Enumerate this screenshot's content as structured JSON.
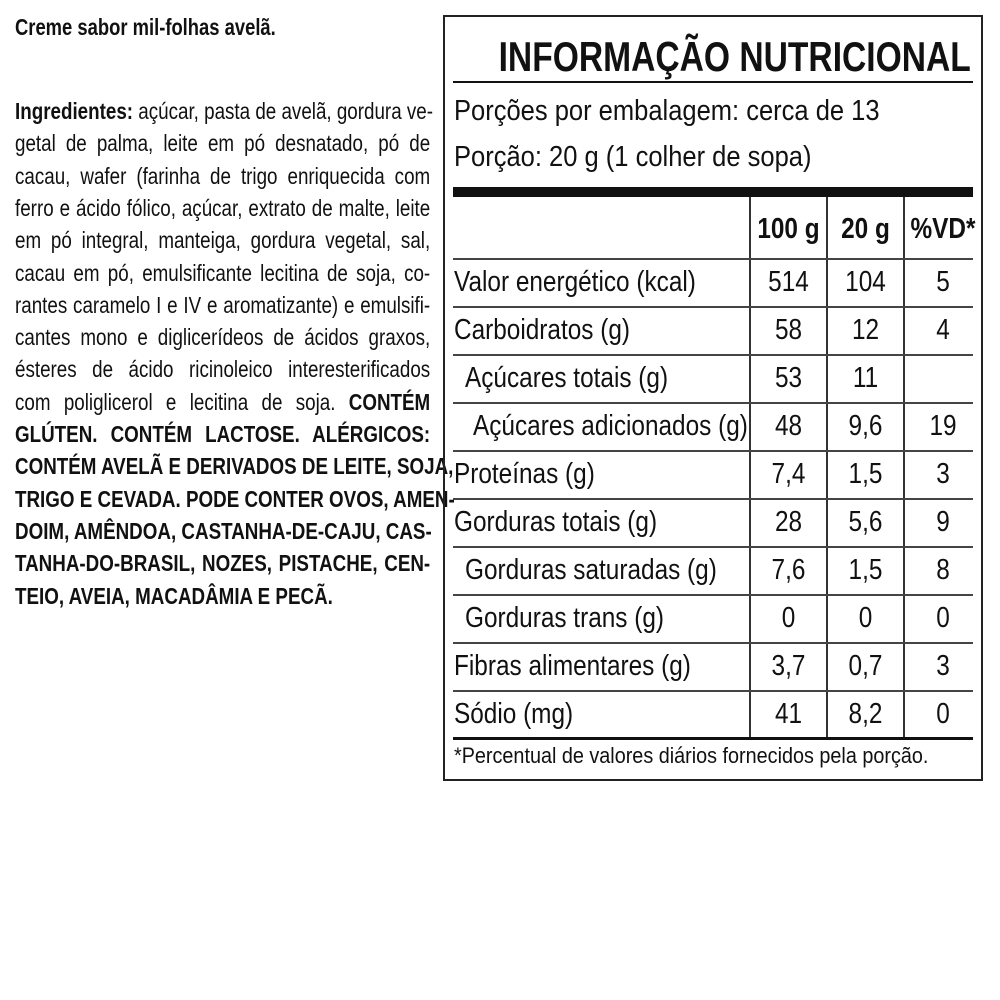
{
  "product_name": "Creme sabor mil-folhas avelã.",
  "ingredients_lines": [
    [
      {
        "b": true,
        "t": "Ingredientes: "
      },
      {
        "t": "açúcar, pasta de avelã, gordura ve-"
      }
    ],
    [
      {
        "t": "getal de palma, leite em pó desnatado, pó de"
      }
    ],
    [
      {
        "t": "cacau, wafer (farinha de trigo enriquecida com"
      }
    ],
    [
      {
        "t": "ferro e ácido fólico, açúcar, extrato de malte, leite"
      }
    ],
    [
      {
        "t": "em pó integral, manteiga, gordura vegetal, sal,"
      }
    ],
    [
      {
        "t": "cacau em pó, emulsificante lecitina de soja, co-"
      }
    ],
    [
      {
        "t": "rantes caramelo I e IV e aromatizante) e emulsifi-"
      }
    ],
    [
      {
        "t": "cantes mono e diglicerídeos de ácidos graxos,"
      }
    ],
    [
      {
        "t": "ésteres de ácido ricinoleico interesterificados"
      }
    ],
    [
      {
        "t": "com poliglicerol e lecitina de soja. "
      },
      {
        "b": true,
        "t": "CONTÉM"
      }
    ],
    [
      {
        "b": true,
        "t": "GLÚTEN. CONTÉM LACTOSE. ALÉRGICOS:"
      }
    ],
    [
      {
        "b": true,
        "t": "CONTÉM AVELÃ E DERIVADOS DE LEITE, SOJA,"
      }
    ],
    [
      {
        "b": true,
        "t": "TRIGO E CEVADA. PODE CONTER OVOS, AMEN-"
      }
    ],
    [
      {
        "b": true,
        "t": "DOIM, AMÊNDOA, CASTANHA-DE-CAJU, CAS-"
      }
    ],
    [
      {
        "b": true,
        "t": "TANHA-DO-BRASIL, NOZES, PISTACHE, CEN-"
      }
    ],
    [
      {
        "b": true,
        "t": "TEIO, AVEIA, MACADÂMIA E PECÃ."
      }
    ]
  ],
  "nutrition": {
    "title": "INFORMAÇÃO NUTRICIONAL",
    "servings_per_package": "Porções por embalagem: cerca de 13",
    "serving_size": "Porção: 20 g (1 colher de sopa)",
    "columns": [
      "100 g",
      "20 g",
      "%VD*"
    ],
    "rows": [
      {
        "label": "Valor energético (kcal)",
        "indent": 0,
        "v100": "514",
        "v20": "104",
        "vd": "5"
      },
      {
        "label": "Carboidratos (g)",
        "indent": 0,
        "v100": "58",
        "v20": "12",
        "vd": "4"
      },
      {
        "label": "Açúcares totais (g)",
        "indent": 1,
        "v100": "53",
        "v20": "11",
        "vd": ""
      },
      {
        "label": "Açúcares adicionados (g)",
        "indent": 2,
        "v100": "48",
        "v20": "9,6",
        "vd": "19"
      },
      {
        "label": "Proteínas (g)",
        "indent": 0,
        "v100": "7,4",
        "v20": "1,5",
        "vd": "3"
      },
      {
        "label": "Gorduras totais (g)",
        "indent": 0,
        "v100": "28",
        "v20": "5,6",
        "vd": "9"
      },
      {
        "label": "Gorduras saturadas (g)",
        "indent": 1,
        "v100": "7,6",
        "v20": "1,5",
        "vd": "8"
      },
      {
        "label": "Gorduras trans (g)",
        "indent": 1,
        "v100": "0",
        "v20": "0",
        "vd": "0"
      },
      {
        "label": "Fibras alimentares (g)",
        "indent": 0,
        "v100": "3,7",
        "v20": "0,7",
        "vd": "3"
      },
      {
        "label": "Sódio (mg)",
        "indent": 0,
        "v100": "41",
        "v20": "8,2",
        "vd": "0"
      }
    ],
    "footnote": "*Percentual de valores diários fornecidos pela porção."
  }
}
